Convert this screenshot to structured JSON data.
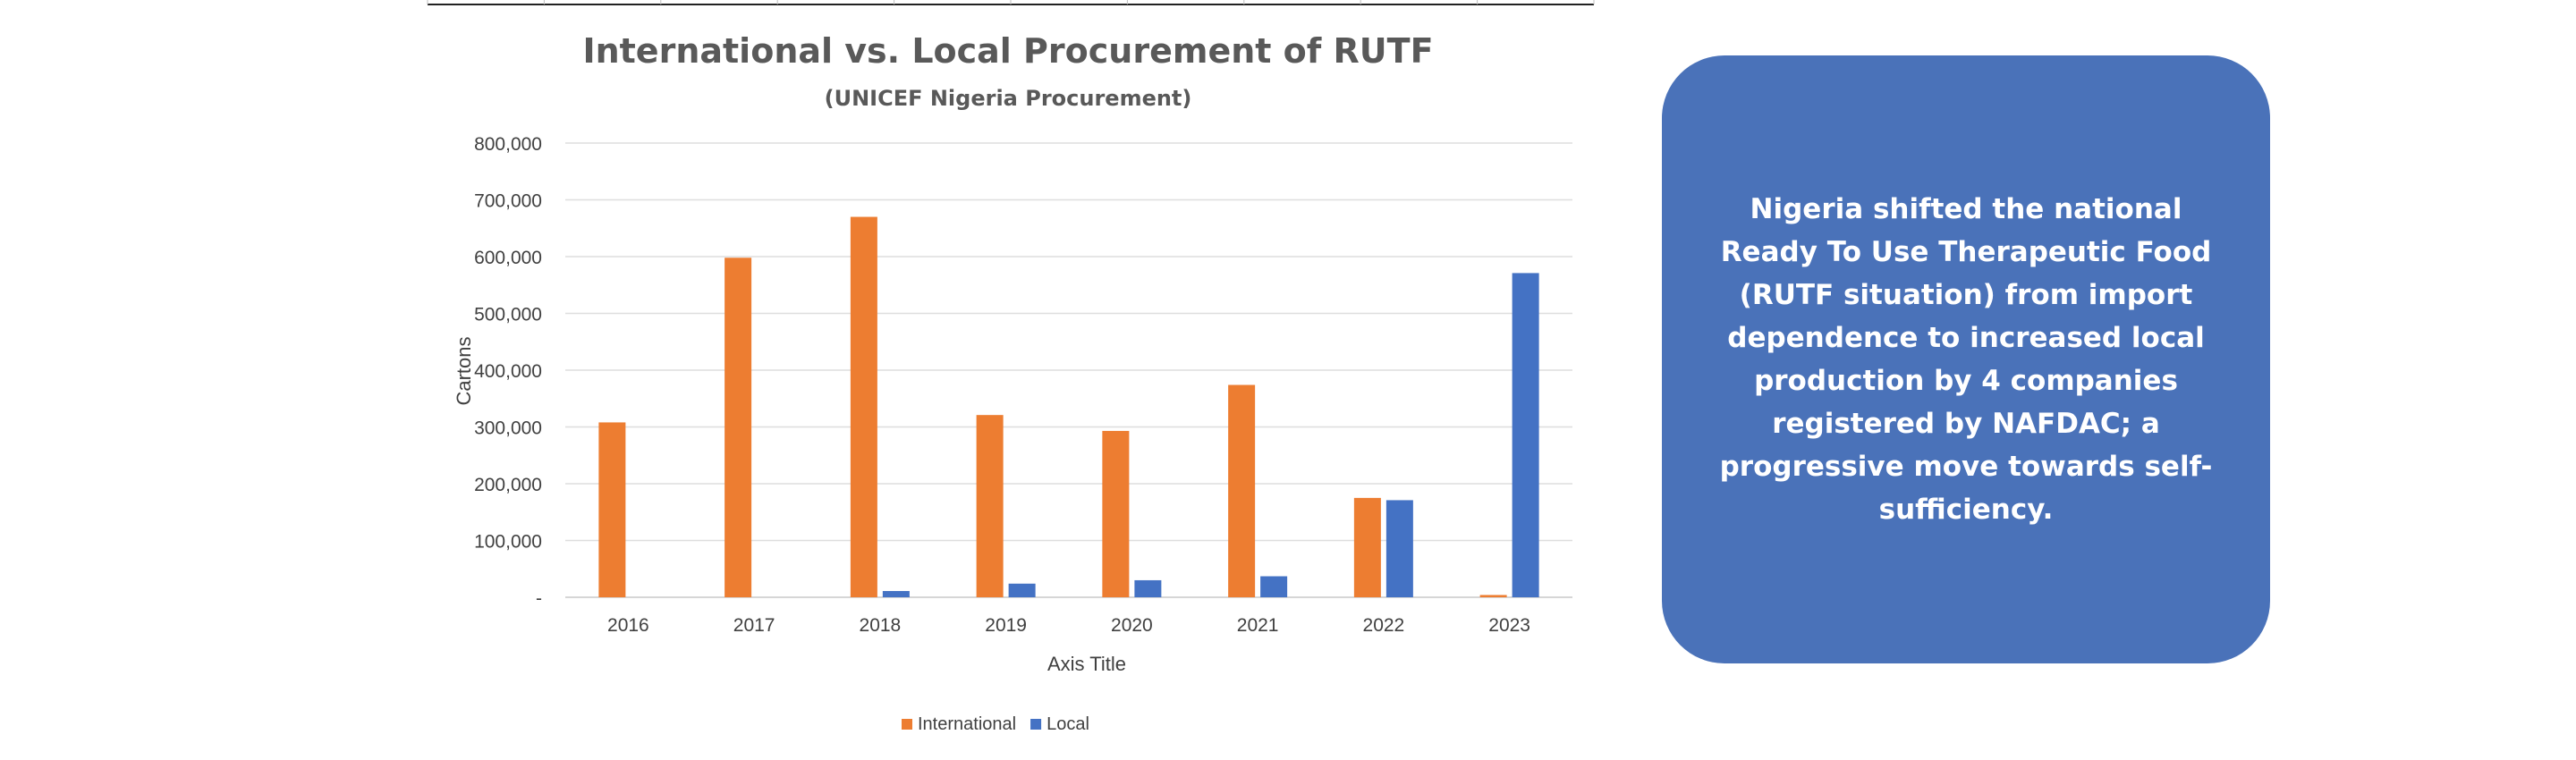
{
  "chart_data": {
    "type": "bar",
    "title": "International vs. Local Procurement of RUTF",
    "subtitle": "(UNICEF Nigeria Procurement)",
    "xlabel": "Axis Title",
    "ylabel": "Cartons",
    "categories": [
      "2016",
      "2017",
      "2018",
      "2019",
      "2020",
      "2021",
      "2022",
      "2023"
    ],
    "series": [
      {
        "name": "International",
        "color": "#ed7d31",
        "values": [
          308000,
          598000,
          670000,
          321000,
          293000,
          374000,
          175000,
          4000
        ]
      },
      {
        "name": "Local",
        "color": "#4472c4",
        "values": [
          0,
          0,
          11000,
          24000,
          30000,
          37000,
          171000,
          571000
        ]
      }
    ],
    "ylim": [
      0,
      800000
    ],
    "yticks": [
      0,
      100000,
      200000,
      300000,
      400000,
      500000,
      600000,
      700000,
      800000
    ],
    "ytick_labels": [
      "-",
      "100,000",
      "200,000",
      "300,000",
      "400,000",
      "500,000",
      "600,000",
      "700,000",
      "800,000"
    ],
    "grid": true,
    "legend_position": "bottom"
  },
  "info_card": {
    "text": "Nigeria shifted the national Ready To Use Therapeutic Food (RUTF situation) from import dependence to increased local production by 4 companies registered by NAFDAC; a progressive move towards self-sufficiency.",
    "background": "#4a72b9"
  }
}
